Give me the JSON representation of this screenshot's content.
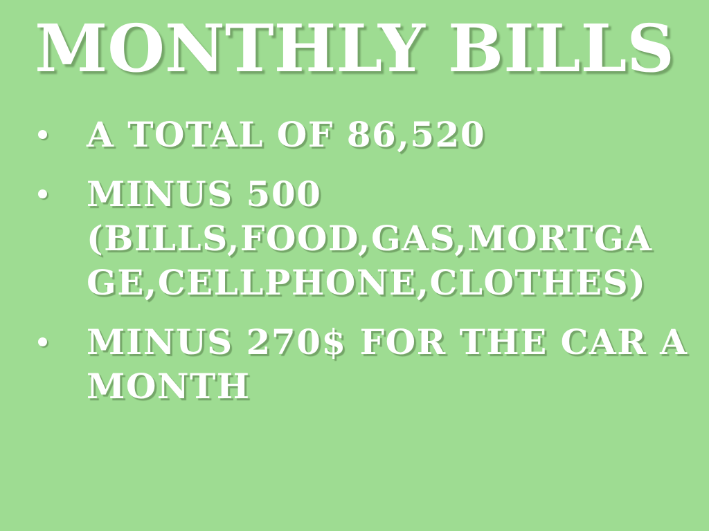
{
  "slide": {
    "title": "MONTHLY BILLS",
    "bullets": [
      {
        "text": "A TOTAL OF 86,520",
        "lines": [
          "A TOTAL OF 86,520"
        ]
      },
      {
        "text": "MINUS 500 (BILLS,FOOD,GAS,MORTGAGE,CELLPHONE,CLOTHES)",
        "lines": [
          "MINUS 500",
          "(BILLS,FOOD,GAS,MORTGA",
          "GE,CELLPHONE,CLOTHES)"
        ]
      },
      {
        "text": "MINUS 270$ FOR THE CAR A MONTH",
        "lines": [
          "MINUS 270$ FOR THE CAR A",
          "MONTH"
        ]
      }
    ],
    "colors": {
      "background": "#9edc92",
      "text": "#ffffff",
      "shadow": "rgba(82,120,70,0.55)"
    }
  }
}
